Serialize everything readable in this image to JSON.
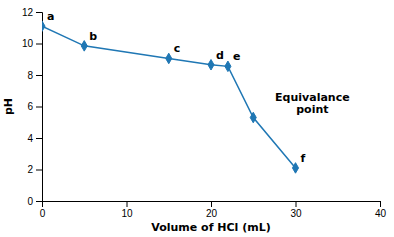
{
  "chart_data": {
    "type": "line",
    "x": [
      0,
      5,
      15,
      20,
      22,
      25,
      30
    ],
    "series": [
      {
        "values": [
          11.1,
          9.85,
          9.05,
          8.65,
          8.55,
          5.3,
          2.1
        ],
        "labels": [
          "a",
          "b",
          "c",
          "d",
          "e",
          null,
          "f"
        ],
        "marker": "diamond"
      }
    ],
    "xlabel": "Volume of HCl (mL)",
    "ylabel": "pH",
    "xlim": [
      0,
      40
    ],
    "ylim": [
      0,
      12
    ],
    "xticks": [
      0,
      10,
      20,
      30,
      40
    ],
    "yticks": [
      0,
      2,
      4,
      6,
      8,
      10,
      12
    ],
    "annotations": [
      {
        "text": "Equivalance\npoint",
        "x": 32,
        "y": 6.2
      }
    ]
  }
}
